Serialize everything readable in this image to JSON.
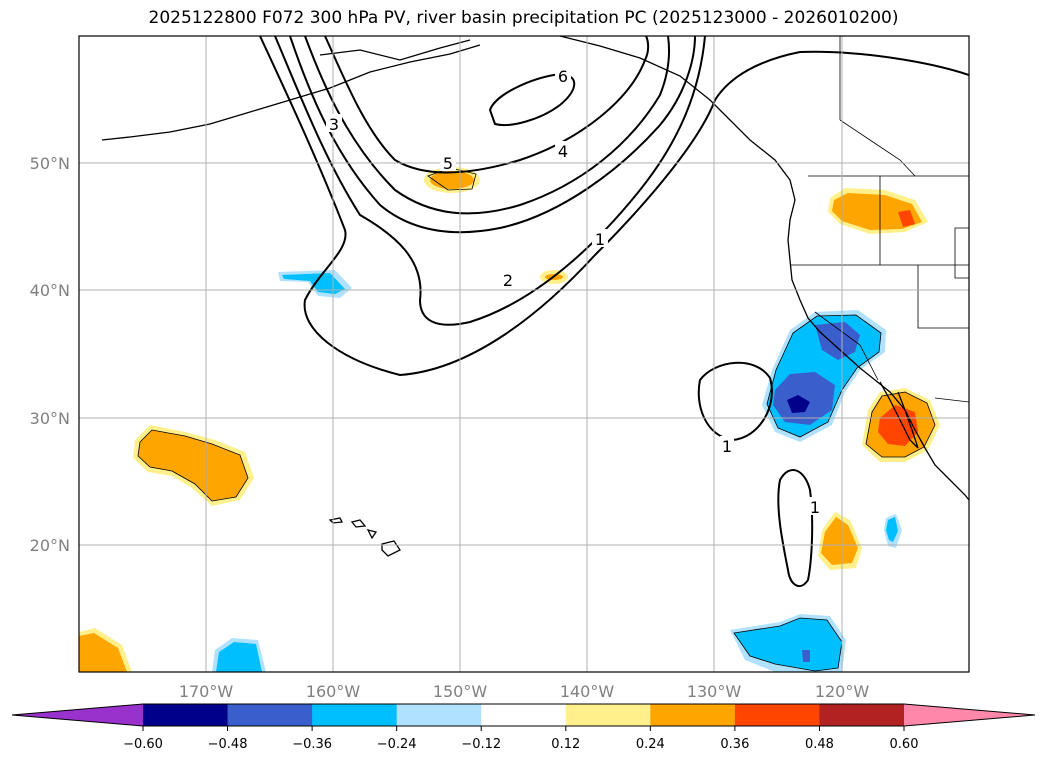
{
  "title": "2025122800 F072 300 hPa PV, river basin precipitation PC (2025123000 - 2026010200)",
  "lat_labels": [
    "50°N",
    "40°N",
    "30°N",
    "20°N"
  ],
  "lon_labels": [
    "170°W",
    "160°W",
    "150°W",
    "140°W",
    "130°W",
    "120°W"
  ],
  "colorbar": {
    "colors": [
      "#9932cc",
      "#00008b",
      "#3a5fcd",
      "#00bfff",
      "#b0e2ff",
      "#ffffff",
      "#fff08c",
      "#ffa500",
      "#ff4500",
      "#b22222",
      "#ff88aa"
    ],
    "tick_labels": [
      "−0.60",
      "−0.48",
      "−0.36",
      "−0.24",
      "−0.12",
      "0.12",
      "0.24",
      "0.36",
      "0.48",
      "0.60"
    ]
  },
  "contour_labels": [
    "6",
    "5",
    "4",
    "3",
    "2",
    "1",
    "1",
    "1"
  ]
}
